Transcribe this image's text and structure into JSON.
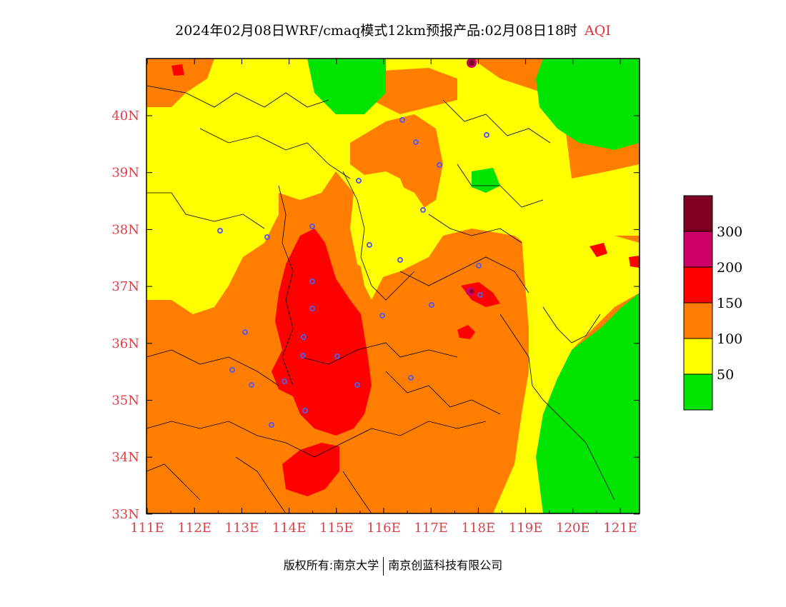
{
  "title": {
    "main": "2024年02月08日WRF/cmaq模式12km预报产品:02月08日18时",
    "variable": "AQI"
  },
  "map": {
    "lon_labels": [
      "111E",
      "112E",
      "113E",
      "114E",
      "115E",
      "116E",
      "117E",
      "118E",
      "119E",
      "120E",
      "121E"
    ],
    "lat_labels": [
      "40N",
      "39N",
      "38N",
      "37N",
      "36N",
      "35N",
      "34N",
      "33N"
    ]
  },
  "legend": {
    "colors": [
      "#00e400",
      "#ffff00",
      "#ff7e00",
      "#ff0000",
      "#cc0066",
      "#7e0023"
    ],
    "labels": [
      "50",
      "100",
      "150",
      "200",
      "300"
    ]
  },
  "footer": {
    "left": "版权所有:南京大学",
    "right": "南京创蓝科技有限公司"
  }
}
